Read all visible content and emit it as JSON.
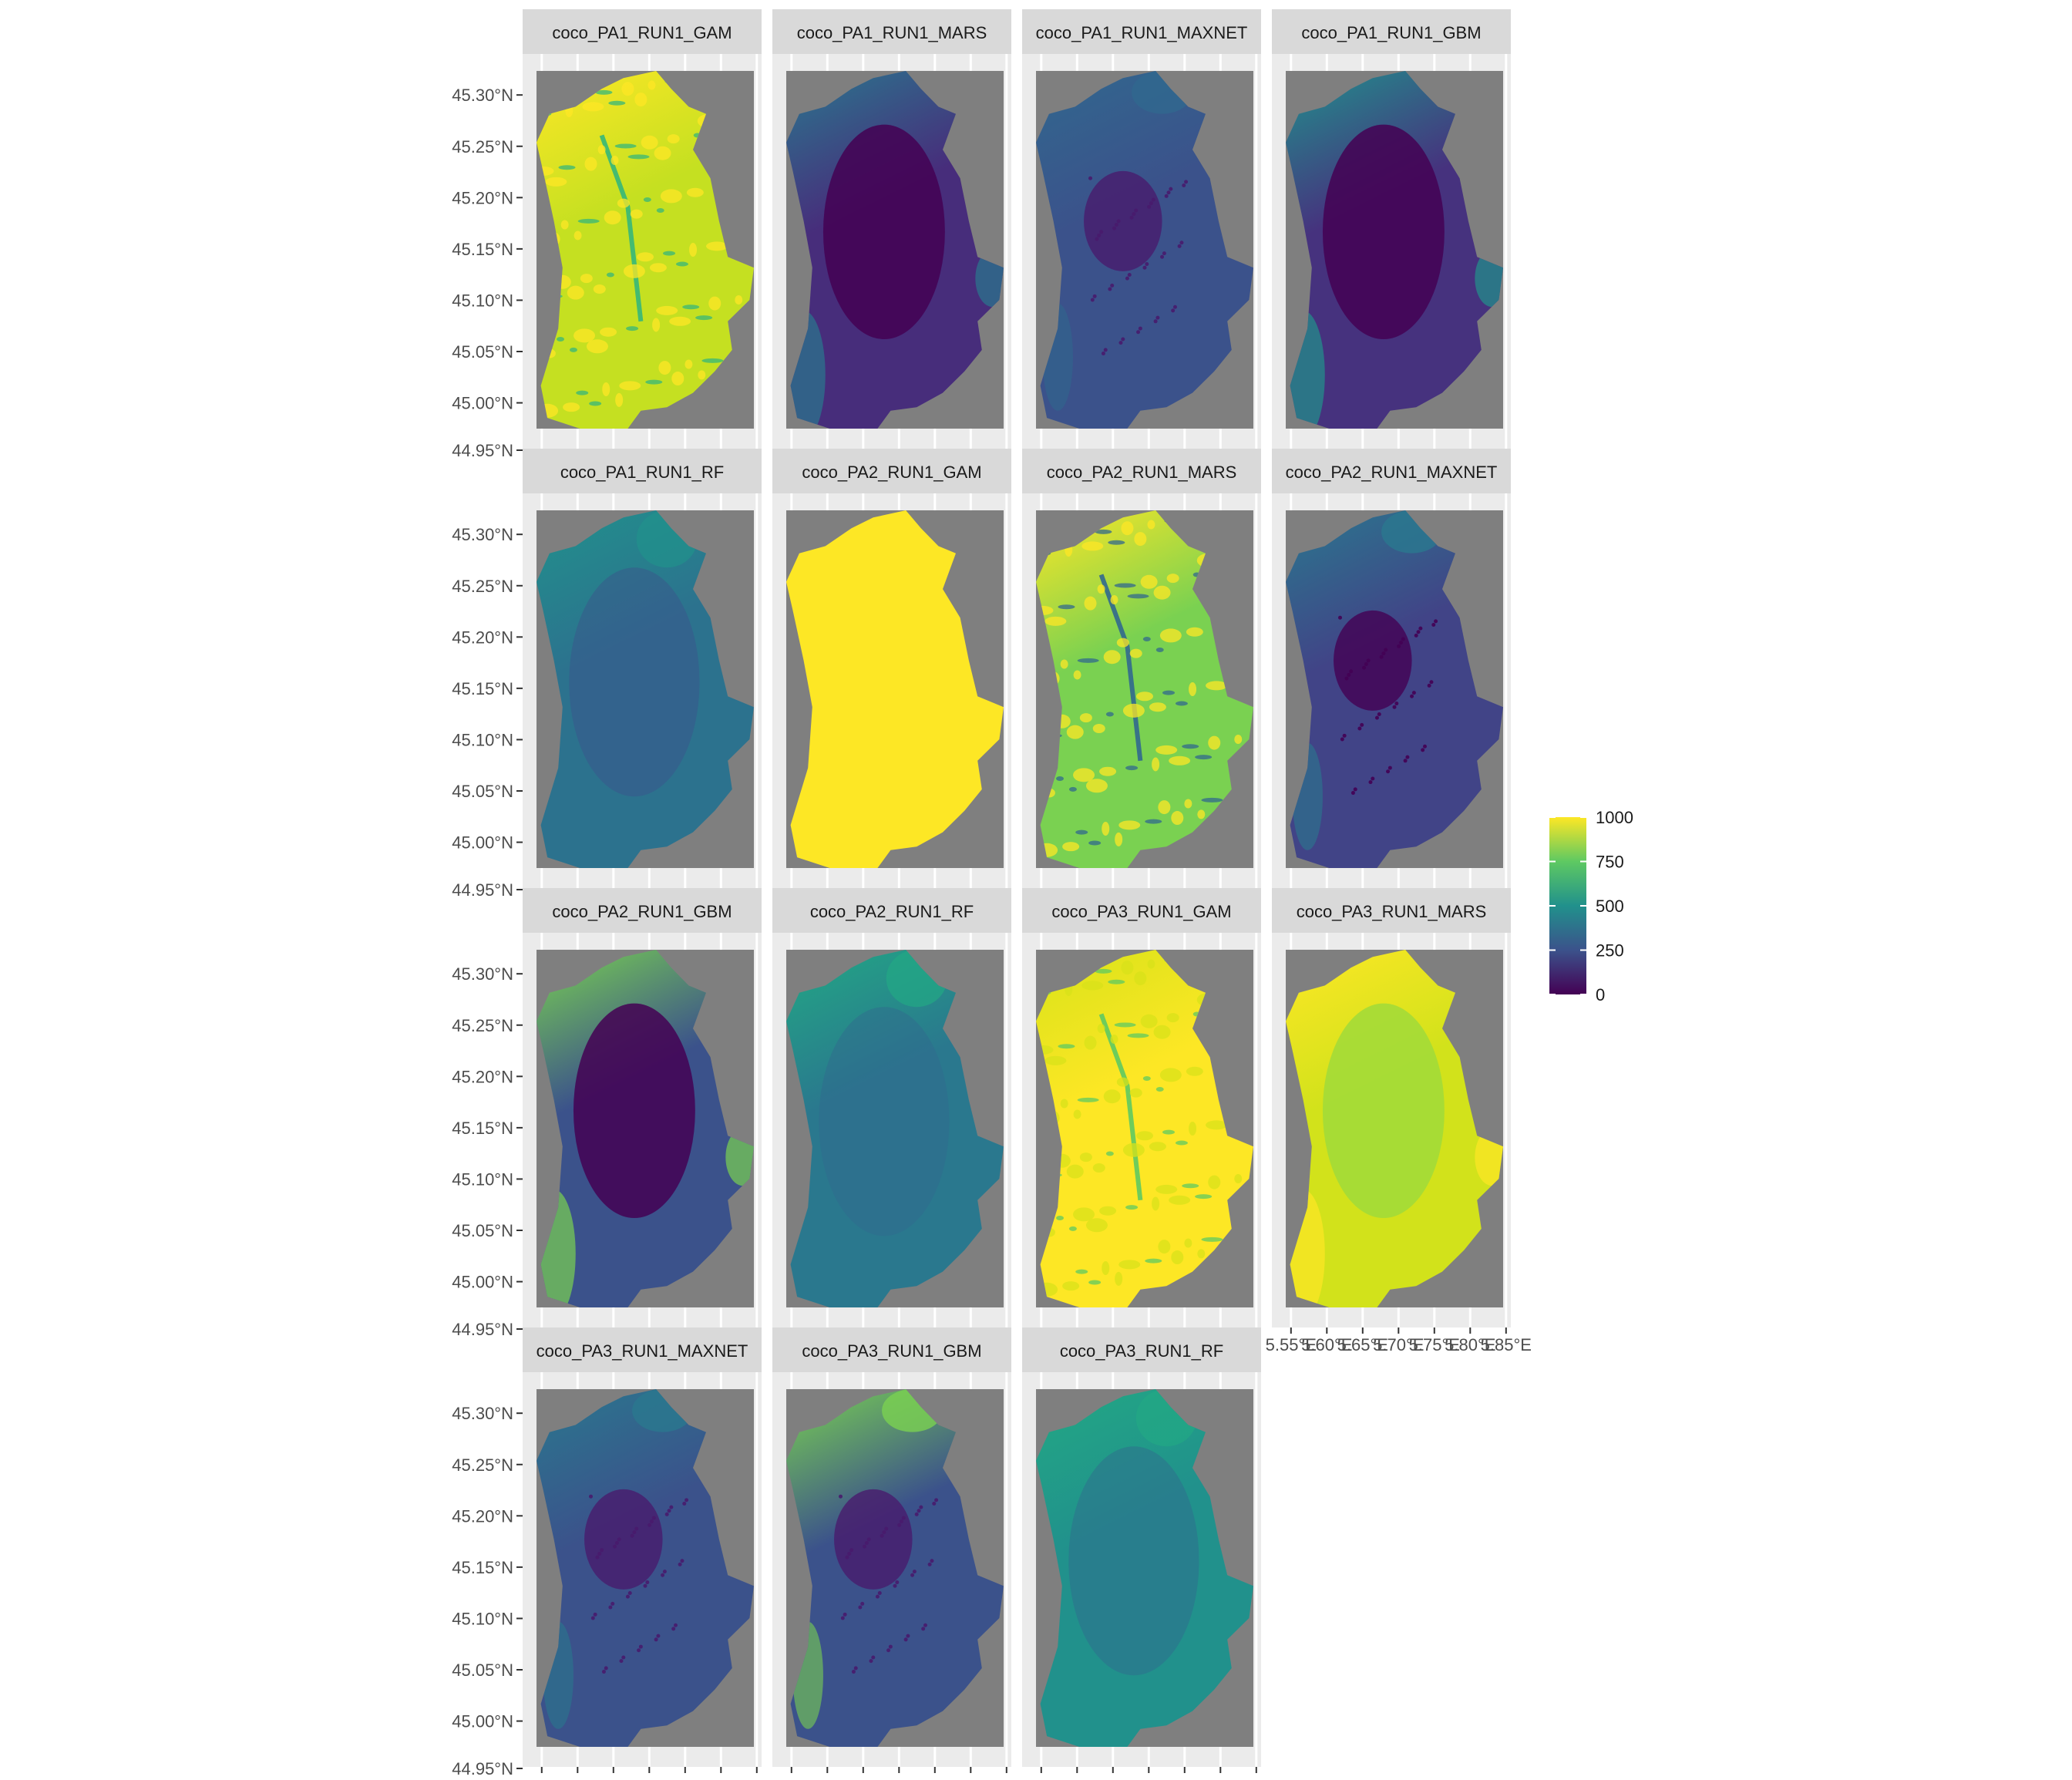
{
  "figure": {
    "panels": [
      {
        "label": "coco_PA1_RUN1_GAM",
        "style": "gam1",
        "base": "#c5e021",
        "hi": "#fde725",
        "lo": "#35b779"
      },
      {
        "label": "coco_PA1_RUN1_MARS",
        "style": "smooth",
        "base": "#472d7b",
        "hi": "#2a788e",
        "lo": "#440154"
      },
      {
        "label": "coco_PA1_RUN1_MAXNET",
        "style": "urban",
        "base": "#3b528b",
        "hi": "#31688e",
        "lo": "#481b6d"
      },
      {
        "label": "coco_PA1_RUN1_GBM",
        "style": "smooth",
        "base": "#46327e",
        "hi": "#21918c",
        "lo": "#440154"
      },
      {
        "label": "coco_PA1_RUN1_RF",
        "style": "mild",
        "base": "#2c728e",
        "hi": "#21918c",
        "lo": "#3b528b"
      },
      {
        "label": "coco_PA2_RUN1_GAM",
        "style": "flat",
        "base": "#fde725",
        "hi": "#fde725",
        "lo": "#fde725"
      },
      {
        "label": "coco_PA2_RUN1_MARS",
        "style": "gam1",
        "base": "#7ad151",
        "hi": "#fde725",
        "lo": "#31688e"
      },
      {
        "label": "coco_PA2_RUN1_MAXNET",
        "style": "urban",
        "base": "#414487",
        "hi": "#2a788e",
        "lo": "#440154"
      },
      {
        "label": "coco_PA2_RUN1_GBM",
        "style": "smooth",
        "base": "#3b528b",
        "hi": "#7ad151",
        "lo": "#440154"
      },
      {
        "label": "coco_PA2_RUN1_RF",
        "style": "mild",
        "base": "#2a788e",
        "hi": "#22a884",
        "lo": "#31688e"
      },
      {
        "label": "coco_PA3_RUN1_GAM",
        "style": "gam1",
        "base": "#fde725",
        "hi": "#d8e219",
        "lo": "#5ec962"
      },
      {
        "label": "coco_PA3_RUN1_MARS",
        "style": "smooth",
        "base": "#d2e21b",
        "hi": "#fde725",
        "lo": "#a0da39"
      },
      {
        "label": "coco_PA3_RUN1_MAXNET",
        "style": "urban",
        "base": "#3b528b",
        "hi": "#2a788e",
        "lo": "#481b6d"
      },
      {
        "label": "coco_PA3_RUN1_GBM",
        "style": "urban",
        "base": "#3b528b",
        "hi": "#7ad151",
        "lo": "#481b6d"
      },
      {
        "label": "coco_PA3_RUN1_RF",
        "style": "mild",
        "base": "#21918c",
        "hi": "#22a884",
        "lo": "#31688e"
      }
    ],
    "y_ticks": [
      "45.30°N",
      "45.25°N",
      "45.20°N",
      "45.15°N",
      "45.10°N",
      "45.05°N",
      "45.00°N",
      "44.95°N"
    ],
    "x_ticks": [
      "5.55°E",
      "5.60°E",
      "5.65°E",
      "5.70°E",
      "5.75°E",
      "5.80°E",
      "5.85°E"
    ],
    "legend": {
      "ticks": [
        "1000",
        "750",
        "500",
        "250",
        "0"
      ],
      "palette": [
        "#440154",
        "#3b528b",
        "#21918c",
        "#5ec962",
        "#fde725"
      ]
    },
    "colors": {
      "na_fill": "#7f7f7f",
      "panel_bg": "#ebebeb",
      "strip_fill": "#d9d9d9"
    }
  }
}
